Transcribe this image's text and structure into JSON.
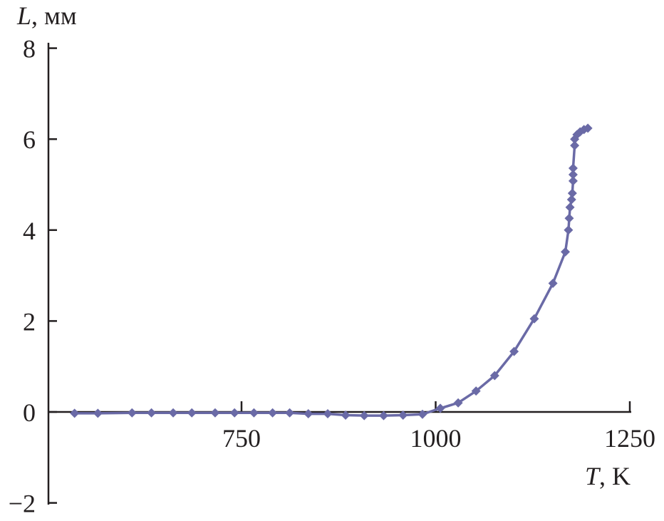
{
  "chart_data": {
    "type": "line",
    "xlabel_var": "T",
    "xlabel_unit": ", K",
    "ylabel_var": "L",
    "ylabel_unit": ", мм",
    "xlim": [
      500,
      1250
    ],
    "ylim": [
      -2,
      8
    ],
    "xticks": [
      750,
      1000,
      1250
    ],
    "xtick_labels": [
      "750",
      "1000",
      "1250"
    ],
    "yticks": [
      8,
      6,
      4,
      2,
      0,
      -2
    ],
    "ytick_labels": [
      "8",
      "6",
      "4",
      "2",
      "0",
      "−2"
    ],
    "grid": false,
    "marker": "diamond",
    "color": "#6a6aa6",
    "x": [
      535,
      565,
      609,
      634,
      662,
      686,
      716,
      741,
      766,
      790,
      812,
      836,
      861,
      884,
      908,
      933,
      958,
      983,
      1006,
      1029,
      1052,
      1076,
      1101,
      1127,
      1151,
      1167,
      1171,
      1172,
      1173,
      1175,
      1176,
      1177,
      1177,
      1177,
      1179,
      1179,
      1182,
      1186,
      1191,
      1196
    ],
    "y": [
      -0.03,
      -0.03,
      -0.02,
      -0.02,
      -0.02,
      -0.02,
      -0.02,
      -0.02,
      -0.02,
      -0.02,
      -0.02,
      -0.04,
      -0.04,
      -0.07,
      -0.08,
      -0.08,
      -0.07,
      -0.05,
      0.08,
      0.2,
      0.46,
      0.8,
      1.33,
      2.05,
      2.83,
      3.52,
      4.0,
      4.26,
      4.5,
      4.67,
      4.81,
      5.08,
      5.22,
      5.36,
      5.86,
      6.0,
      6.1,
      6.16,
      6.21,
      6.24
    ]
  }
}
